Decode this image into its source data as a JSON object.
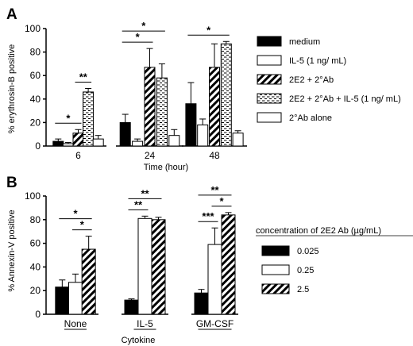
{
  "panels": [
    {
      "label": "A",
      "chart_data": {
        "type": "bar",
        "categories": [
          "6",
          "24",
          "48"
        ],
        "xlabel": "Time (hour)",
        "ylabel": "% erythrosin-B positive",
        "ylim": [
          0,
          100
        ],
        "yticks": [
          0,
          20,
          40,
          60,
          80,
          100
        ],
        "legend_position": "right",
        "series": [
          {
            "name": "medium",
            "pattern": "solid",
            "values": [
              4,
              20,
              36
            ],
            "errors": [
              2,
              7,
              18
            ]
          },
          {
            "name": "IL-5 (1 ng/ mL)",
            "pattern": "white",
            "values": [
              2,
              4,
              18
            ],
            "errors": [
              1,
              2,
              5
            ]
          },
          {
            "name": "2E2 + 2°Ab",
            "pattern": "diagonal",
            "values": [
              11,
              67,
              67
            ],
            "errors": [
              3,
              16,
              20
            ]
          },
          {
            "name": "2E2 + 2°Ab + IL-5 (1 ng/ mL)",
            "pattern": "dashed",
            "values": [
              46,
              58,
              87
            ],
            "errors": [
              3,
              12,
              2
            ]
          },
          {
            "name": "2°Ab  alone",
            "pattern": "white",
            "values": [
              6,
              9,
              11
            ],
            "errors": [
              3,
              5,
              2
            ]
          }
        ],
        "significance": [
          {
            "group": 0,
            "from": 0,
            "to": 2,
            "text": "*"
          },
          {
            "group": 0,
            "from": 2,
            "to": 3,
            "text": "**"
          },
          {
            "group": 1,
            "from": 0,
            "to": 2,
            "text": "*"
          },
          {
            "group": 1,
            "from": 0,
            "to": 3,
            "text": "*"
          },
          {
            "group": 2,
            "from": 0,
            "to": 3,
            "text": "*"
          }
        ]
      }
    },
    {
      "label": "B",
      "chart_data": {
        "type": "bar",
        "categories": [
          "None",
          "IL-5",
          "GM-CSF"
        ],
        "xlabel": "Cytokine",
        "ylabel": "% Annexin-V positive",
        "ylim": [
          0,
          100
        ],
        "yticks": [
          0,
          20,
          40,
          60,
          80,
          100
        ],
        "legend_title": "concentration of 2E2 Ab (µg/mL)",
        "legend_position": "right",
        "series": [
          {
            "name": "0.025",
            "pattern": "solid",
            "values": [
              23,
              12,
              18
            ],
            "errors": [
              6,
              1,
              3
            ]
          },
          {
            "name": "0.25",
            "pattern": "white",
            "values": [
              27,
              81,
              59
            ],
            "errors": [
              7,
              2,
              14
            ]
          },
          {
            "name": "2.5",
            "pattern": "diagonal",
            "values": [
              55,
              80,
              84
            ],
            "errors": [
              11,
              2,
              2
            ]
          }
        ],
        "significance": [
          {
            "group": 0,
            "from": 0,
            "to": 2,
            "text": "*"
          },
          {
            "group": 0,
            "from": 1,
            "to": 2,
            "text": "*"
          },
          {
            "group": 1,
            "from": 0,
            "to": 2,
            "text": "**"
          },
          {
            "group": 1,
            "from": 0,
            "to": 1,
            "text": "**"
          },
          {
            "group": 2,
            "from": 0,
            "to": 2,
            "text": "**"
          },
          {
            "group": 2,
            "from": 0,
            "to": 1,
            "text": "***"
          },
          {
            "group": 2,
            "from": 1,
            "to": 2,
            "text": "*"
          }
        ]
      }
    }
  ]
}
